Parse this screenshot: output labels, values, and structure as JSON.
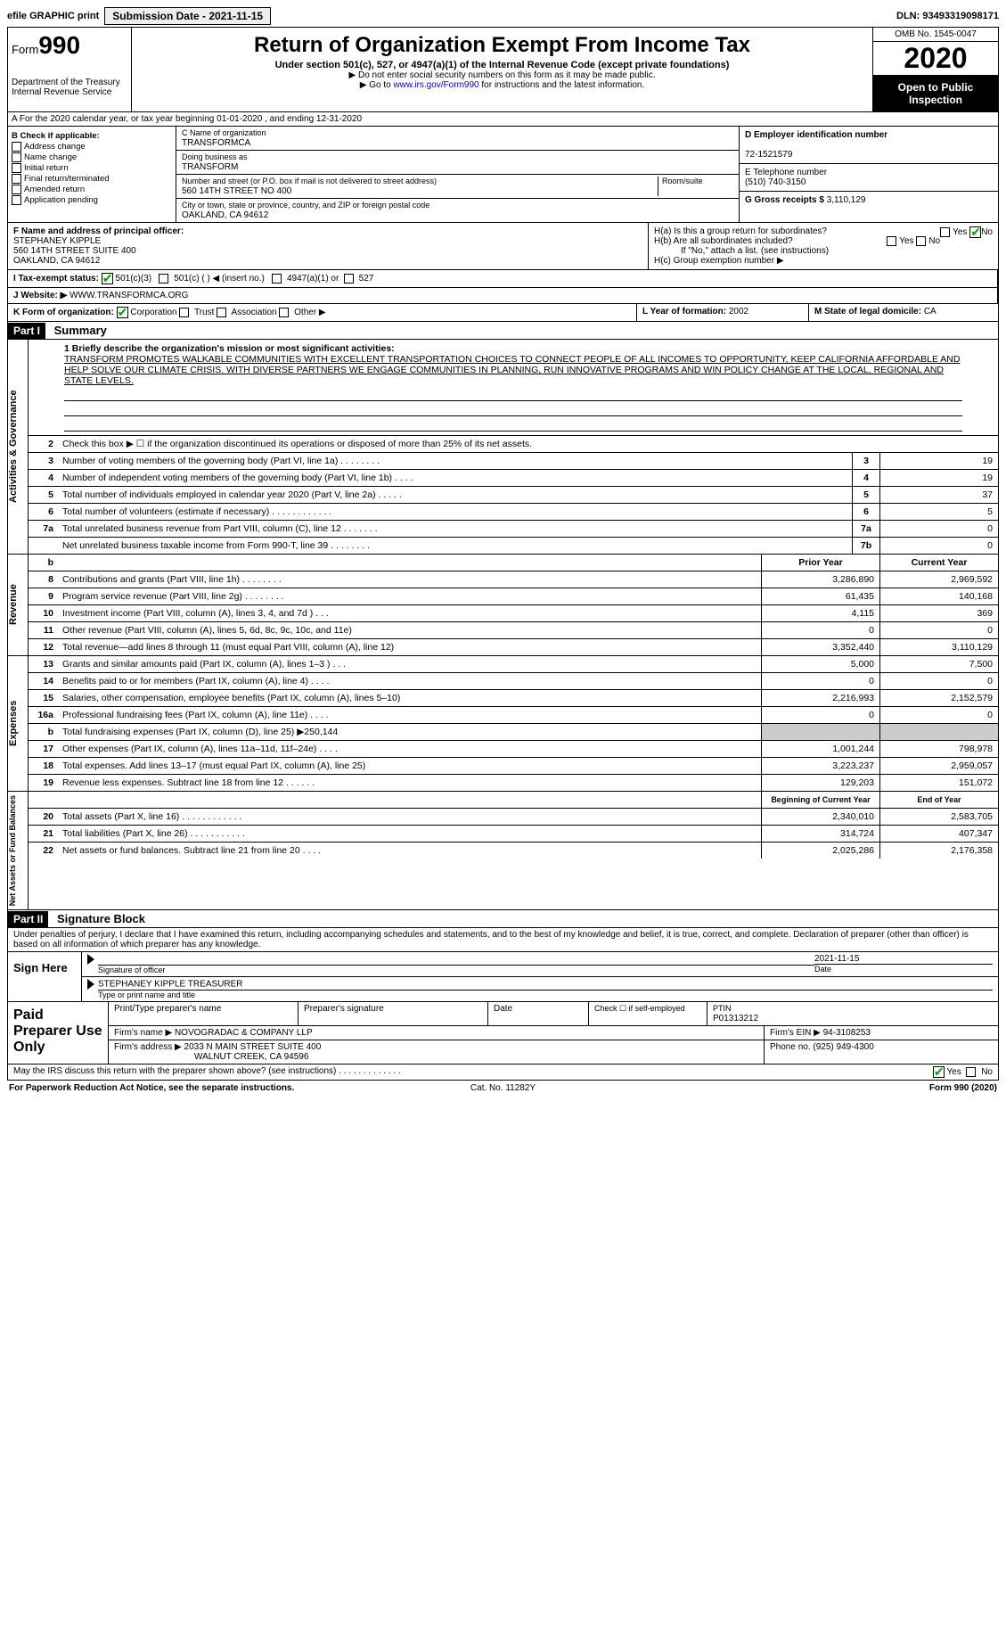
{
  "topbar": {
    "efile": "efile GRAPHIC print",
    "subdate_lbl": "Submission Date - 2021-11-15",
    "dln": "DLN: 93493319098171"
  },
  "header": {
    "form_word": "Form",
    "form_num": "990",
    "dept": "Department of the Treasury\nInternal Revenue Service",
    "title": "Return of Organization Exempt From Income Tax",
    "sub": "Under section 501(c), 527, or 4947(a)(1) of the Internal Revenue Code (except private foundations)",
    "note1": "▶ Do not enter social security numbers on this form as it may be made public.",
    "note2": "▶ Go to www.irs.gov/Form990 for instructions and the latest information.",
    "link": "www.irs.gov/Form990",
    "omb": "OMB No. 1545-0047",
    "year": "2020",
    "opi": "Open to Public Inspection"
  },
  "row_a": "A For the 2020 calendar year, or tax year beginning 01-01-2020   , and ending 12-31-2020",
  "blk_b": {
    "title": "B Check if applicable:",
    "items": [
      "Address change",
      "Name change",
      "Initial return",
      "Final return/terminated",
      "Amended return",
      "Application pending"
    ]
  },
  "blk_c": {
    "name_lbl": "C Name of organization",
    "name": "TRANSFORMCA",
    "dba_lbl": "Doing business as",
    "dba": "TRANSFORM",
    "addr_lbl": "Number and street (or P.O. box if mail is not delivered to street address)",
    "room_lbl": "Room/suite",
    "addr": "560 14TH STREET NO 400",
    "city_lbl": "City or town, state or province, country, and ZIP or foreign postal code",
    "city": "OAKLAND, CA  94612"
  },
  "blk_d": {
    "ein_lbl": "D Employer identification number",
    "ein": "72-1521579",
    "tel_lbl": "E Telephone number",
    "tel": "(510) 740-3150",
    "gross_lbl": "G Gross receipts $",
    "gross": "3,110,129"
  },
  "fg": {
    "f_lbl": "F Name and address of principal officer:",
    "f_name": "STEPHANEY KIPPLE",
    "f_addr1": "560 14TH STREET SUITE 400",
    "f_addr2": "OAKLAND, CA  94612"
  },
  "h": {
    "ha": "H(a)  Is this a group return for subordinates?",
    "hb": "H(b)  Are all subordinates included?",
    "hb_note": "If \"No,\" attach a list. (see instructions)",
    "hc": "H(c)  Group exemption number ▶",
    "yes": "Yes",
    "no": "No"
  },
  "i": {
    "lbl": "I  Tax-exempt status:",
    "opts": [
      "501(c)(3)",
      "501(c) (  ) ◀ (insert no.)",
      "4947(a)(1) or",
      "527"
    ]
  },
  "j": {
    "lbl": "J  Website: ▶",
    "val": "WWW.TRANSFORMCA.ORG"
  },
  "k": {
    "lbl": "K Form of organization:",
    "opts": [
      "Corporation",
      "Trust",
      "Association",
      "Other ▶"
    ]
  },
  "l": {
    "lbl": "L Year of formation:",
    "val": "2002"
  },
  "m": {
    "lbl": "M State of legal domicile:",
    "val": "CA"
  },
  "parts": {
    "p1": "Part I",
    "p1t": "Summary",
    "p2": "Part II",
    "p2t": "Signature Block"
  },
  "mission": {
    "lbl": "1  Briefly describe the organization's mission or most significant activities:",
    "text": "TRANSFORM PROMOTES WALKABLE COMMUNITIES WITH EXCELLENT TRANSPORTATION CHOICES TO CONNECT PEOPLE OF ALL INCOMES TO OPPORTUNITY, KEEP CALIFORNIA AFFORDABLE AND HELP SOLVE OUR CLIMATE CRISIS. WITH DIVERSE PARTNERS WE ENGAGE COMMUNITIES IN PLANNING, RUN INNOVATIVE PROGRAMS AND WIN POLICY CHANGE AT THE LOCAL, REGIONAL AND STATE LEVELS."
  },
  "gov": {
    "l2": "Check this box ▶ ☐ if the organization discontinued its operations or disposed of more than 25% of its net assets.",
    "rows": [
      {
        "n": "3",
        "d": "Number of voting members of the governing body (Part VI, line 1a)   .    .    .    .    .    .    .    .",
        "b": "3",
        "v": "19"
      },
      {
        "n": "4",
        "d": "Number of independent voting members of the governing body (Part VI, line 1b)   .    .    .    .",
        "b": "4",
        "v": "19"
      },
      {
        "n": "5",
        "d": "Total number of individuals employed in calendar year 2020 (Part V, line 2a)   .    .    .    .    .",
        "b": "5",
        "v": "37"
      },
      {
        "n": "6",
        "d": "Total number of volunteers (estimate if necessary)   .    .    .    .    .    .    .    .    .    .    .    .",
        "b": "6",
        "v": "5"
      },
      {
        "n": "7a",
        "d": "Total unrelated business revenue from Part VIII, column (C), line 12   .    .    .    .    .    .    .",
        "b": "7a",
        "v": "0"
      },
      {
        "n": "",
        "d": "Net unrelated business taxable income from Form 990-T, line 39   .    .    .    .    .    .    .    .",
        "b": "7b",
        "v": "0"
      }
    ]
  },
  "colhdrs": {
    "b": "b",
    "prior": "Prior Year",
    "curr": "Current Year",
    "boy": "Beginning of Current Year",
    "eoy": "End of Year"
  },
  "rev": [
    {
      "n": "8",
      "d": "Contributions and grants (Part VIII, line 1h)   .    .    .    .    .    .    .    .",
      "p": "3,286,890",
      "c": "2,969,592"
    },
    {
      "n": "9",
      "d": "Program service revenue (Part VIII, line 2g)   .    .    .    .    .    .    .    .",
      "p": "61,435",
      "c": "140,168"
    },
    {
      "n": "10",
      "d": "Investment income (Part VIII, column (A), lines 3, 4, and 7d )   .    .    .",
      "p": "4,115",
      "c": "369"
    },
    {
      "n": "11",
      "d": "Other revenue (Part VIII, column (A), lines 5, 6d, 8c, 9c, 10c, and 11e)",
      "p": "0",
      "c": "0"
    },
    {
      "n": "12",
      "d": "Total revenue—add lines 8 through 11 (must equal Part VIII, column (A), line 12)",
      "p": "3,352,440",
      "c": "3,110,129"
    }
  ],
  "exp": [
    {
      "n": "13",
      "d": "Grants and similar amounts paid (Part IX, column (A), lines 1–3 )   .    .    .",
      "p": "5,000",
      "c": "7,500"
    },
    {
      "n": "14",
      "d": "Benefits paid to or for members (Part IX, column (A), line 4)   .    .    .    .",
      "p": "0",
      "c": "0"
    },
    {
      "n": "15",
      "d": "Salaries, other compensation, employee benefits (Part IX, column (A), lines 5–10)",
      "p": "2,216,993",
      "c": "2,152,579"
    },
    {
      "n": "16a",
      "d": "Professional fundraising fees (Part IX, column (A), line 11e)   .    .    .    .",
      "p": "0",
      "c": "0"
    },
    {
      "n": "b",
      "d": "Total fundraising expenses (Part IX, column (D), line 25) ▶250,144",
      "p": "",
      "c": ""
    },
    {
      "n": "17",
      "d": "Other expenses (Part IX, column (A), lines 11a–11d, 11f–24e)   .    .    .    .",
      "p": "1,001,244",
      "c": "798,978"
    },
    {
      "n": "18",
      "d": "Total expenses. Add lines 13–17 (must equal Part IX, column (A), line 25)",
      "p": "3,223,237",
      "c": "2,959,057"
    },
    {
      "n": "19",
      "d": "Revenue less expenses. Subtract line 18 from line 12   .    .    .    .    .    .",
      "p": "129,203",
      "c": "151,072"
    }
  ],
  "net": [
    {
      "n": "20",
      "d": "Total assets (Part X, line 16)   .    .    .    .    .    .    .    .    .    .    .    .",
      "p": "2,340,010",
      "c": "2,583,705"
    },
    {
      "n": "21",
      "d": "Total liabilities (Part X, line 26)   .    .    .    .    .    .    .    .    .    .    .",
      "p": "314,724",
      "c": "407,347"
    },
    {
      "n": "22",
      "d": "Net assets or fund balances. Subtract line 21 from line 20   .    .    .    .",
      "p": "2,025,286",
      "c": "2,176,358"
    }
  ],
  "vtabs": {
    "gov": "Activities & Governance",
    "rev": "Revenue",
    "exp": "Expenses",
    "net": "Net Assets or Fund Balances"
  },
  "sig": {
    "decl": "Under penalties of perjury, I declare that I have examined this return, including accompanying schedules and statements, and to the best of my knowledge and belief, it is true, correct, and complete. Declaration of preparer (other than officer) is based on all information of which preparer has any knowledge.",
    "sign_here": "Sign Here",
    "sig_lbl": "Signature of officer",
    "date_lbl": "Date",
    "date": "2021-11-15",
    "name": "STEPHANEY KIPPLE  TREASURER",
    "name_lbl": "Type or print name and title"
  },
  "paid": {
    "title": "Paid Preparer Use Only",
    "h1": "Print/Type preparer's name",
    "h2": "Preparer's signature",
    "h3": "Date",
    "h4": "Check ☐ if self-employed",
    "h5": "PTIN",
    "ptin": "P01313212",
    "firm_lbl": "Firm's name    ▶",
    "firm": "NOVOGRADAC & COMPANY LLP",
    "ein_lbl": "Firm's EIN ▶",
    "ein": "94-3108253",
    "addr_lbl": "Firm's address ▶",
    "addr1": "2033 N MAIN STREET SUITE 400",
    "addr2": "WALNUT CREEK, CA  94596",
    "phone_lbl": "Phone no.",
    "phone": "(925) 949-4300"
  },
  "discuss": {
    "q": "May the IRS discuss this return with the preparer shown above? (see instructions)   .    .    .    .    .    .    .    .    .    .    .    .    .",
    "yes": "Yes",
    "no": "No"
  },
  "footer": {
    "l": "For Paperwork Reduction Act Notice, see the separate instructions.",
    "c": "Cat. No. 11282Y",
    "r": "Form 990 (2020)"
  }
}
